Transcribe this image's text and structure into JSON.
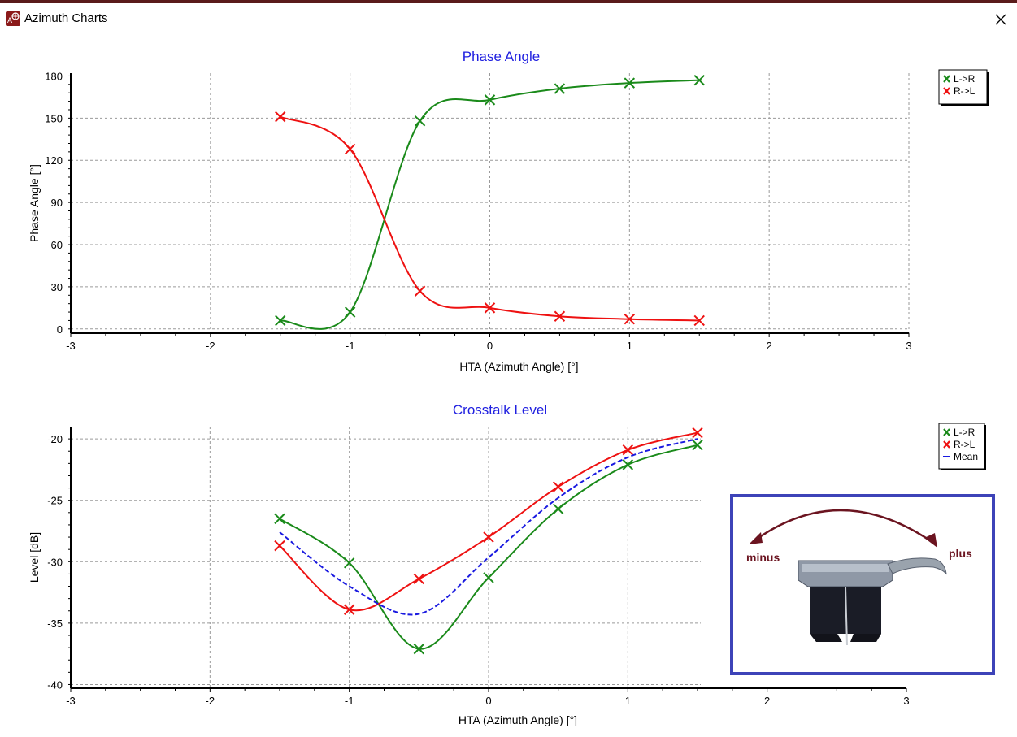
{
  "window": {
    "title": "Azimuth Charts"
  },
  "colors": {
    "l_to_r": "#1a8a1a",
    "r_to_l": "#ee1111",
    "mean": "#1a1ae0",
    "title": "#2020e0",
    "frame": "#3d43b8",
    "arrow": "#6b1420"
  },
  "inset": {
    "minus_label": "minus",
    "plus_label": "plus"
  },
  "chart_data": [
    {
      "type": "line",
      "title": "Phase Angle",
      "xlabel": "HTA (Azimuth Angle) [°]",
      "ylabel": "Phase Angle [°]",
      "xlim": [
        -3,
        3
      ],
      "ylim": [
        -3,
        182
      ],
      "xticks": [
        -3,
        -2,
        -1,
        0,
        1,
        2,
        3
      ],
      "yticks": [
        0,
        30,
        60,
        90,
        120,
        150,
        180
      ],
      "grid": true,
      "legend": "top-right",
      "series": [
        {
          "name": "L->R",
          "x": [
            -1.5,
            -1,
            -0.5,
            0,
            0.5,
            1,
            1.5
          ],
          "y": [
            6,
            12,
            148,
            163,
            171,
            175,
            177
          ]
        },
        {
          "name": "R->L",
          "x": [
            -1.5,
            -1,
            -0.5,
            0,
            0.5,
            1,
            1.5
          ],
          "y": [
            151,
            128,
            27,
            15,
            9,
            7,
            6
          ]
        }
      ]
    },
    {
      "type": "line",
      "title": "Crosstalk Level",
      "xlabel": "HTA (Azimuth Angle) [°]",
      "ylabel": "Level [dB]",
      "xlim": [
        -3,
        3
      ],
      "ylim": [
        -40.3,
        -19
      ],
      "xticks": [
        -3,
        -2,
        -1,
        0,
        1,
        2,
        3
      ],
      "yticks": [
        -20,
        -25,
        -30,
        -35,
        -40
      ],
      "grid": true,
      "legend": "top-right",
      "series": [
        {
          "name": "L->R",
          "x": [
            -1.5,
            -1,
            -0.5,
            0,
            0.5,
            1,
            1.5
          ],
          "y": [
            -26.5,
            -30.1,
            -37.1,
            -31.3,
            -25.7,
            -22.1,
            -20.5
          ]
        },
        {
          "name": "R->L",
          "x": [
            -1.5,
            -1,
            -0.5,
            0,
            0.5,
            1,
            1.5
          ],
          "y": [
            -28.7,
            -33.9,
            -31.4,
            -28,
            -23.9,
            -20.9,
            -19.5
          ]
        },
        {
          "name": "Mean",
          "x": [
            -1.5,
            -1,
            -0.5,
            0,
            0.5,
            1,
            1.5
          ],
          "y": [
            -27.6,
            -32,
            -34.25,
            -29.65,
            -24.8,
            -21.5,
            -20
          ]
        }
      ]
    }
  ]
}
